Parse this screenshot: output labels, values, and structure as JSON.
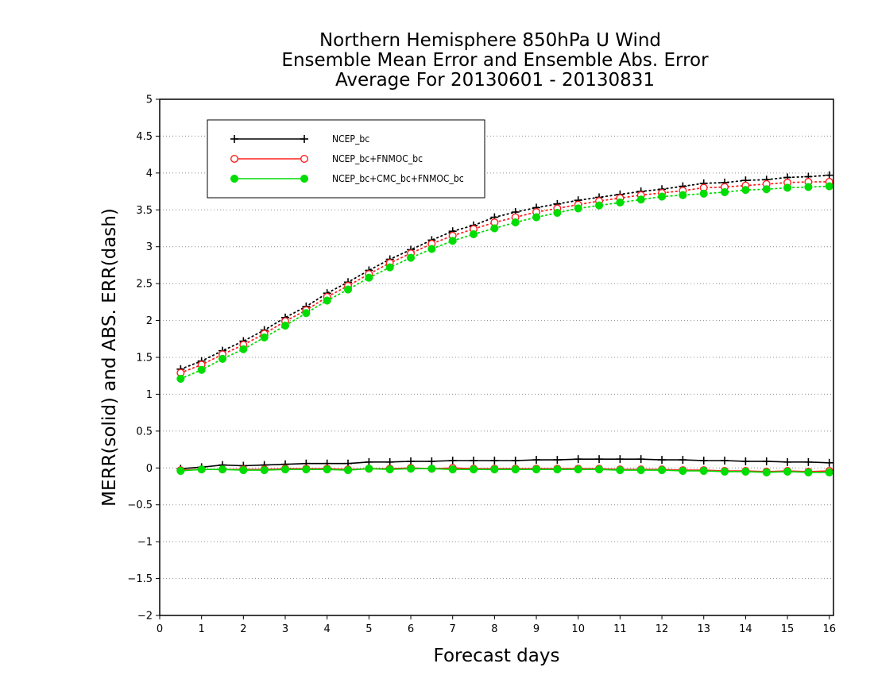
{
  "chart_data": {
    "type": "line",
    "title_lines": [
      "Northern Hemisphere 850hPa U Wind",
      "Ensemble Mean Error and Ensemble Abs. Error",
      "Average For 20130601 - 20130831"
    ],
    "xlabel": "Forecast days",
    "ylabel": "MERR(solid) and ABS. ERR(dash)",
    "xlim": [
      0,
      16.1
    ],
    "ylim": [
      -2,
      5
    ],
    "x_ticks": [
      "0",
      "1",
      "2",
      "3",
      "4",
      "5",
      "6",
      "7",
      "8",
      "9",
      "10",
      "11",
      "12",
      "13",
      "14",
      "15",
      "16"
    ],
    "y_ticks": [
      "5",
      "4.5",
      "4",
      "3.5",
      "3",
      "2.5",
      "2",
      "1.5",
      "1",
      "0.5",
      "0",
      "−0.5",
      "−1",
      "−1.5",
      "−2"
    ],
    "grid": true,
    "legend_position": "top-left",
    "x": [
      0.5,
      1,
      1.5,
      2,
      2.5,
      3,
      3.5,
      4,
      4.5,
      5,
      5.5,
      6,
      6.5,
      7,
      7.5,
      8,
      8.5,
      9,
      9.5,
      10,
      10.5,
      11,
      11.5,
      12,
      12.5,
      13,
      13.5,
      14,
      14.5,
      15,
      15.5,
      16
    ],
    "series": [
      {
        "name": "NCEP_bc",
        "color": "#000000",
        "marker": "plus",
        "mean_error": [
          -0.01,
          0.01,
          0.04,
          0.03,
          0.04,
          0.05,
          0.06,
          0.06,
          0.06,
          0.08,
          0.08,
          0.09,
          0.09,
          0.1,
          0.1,
          0.1,
          0.1,
          0.11,
          0.11,
          0.12,
          0.12,
          0.12,
          0.12,
          0.11,
          0.11,
          0.1,
          0.1,
          0.09,
          0.09,
          0.08,
          0.08,
          0.07
        ],
        "abs_error": [
          1.34,
          1.45,
          1.59,
          1.72,
          1.87,
          2.04,
          2.19,
          2.37,
          2.52,
          2.68,
          2.83,
          2.96,
          3.09,
          3.21,
          3.29,
          3.4,
          3.47,
          3.53,
          3.58,
          3.63,
          3.67,
          3.71,
          3.75,
          3.78,
          3.82,
          3.86,
          3.87,
          3.9,
          3.91,
          3.94,
          3.95,
          3.97
        ]
      },
      {
        "name": "NCEP_bc+FNMOC_bc",
        "color": "#ff2020",
        "marker": "open-circle",
        "mean_error": [
          -0.03,
          -0.02,
          -0.02,
          -0.02,
          -0.02,
          -0.01,
          -0.01,
          -0.01,
          -0.02,
          -0.01,
          -0.01,
          0.0,
          -0.01,
          0.0,
          -0.01,
          -0.01,
          -0.01,
          -0.01,
          -0.01,
          -0.01,
          -0.01,
          -0.02,
          -0.02,
          -0.02,
          -0.03,
          -0.03,
          -0.04,
          -0.04,
          -0.05,
          -0.04,
          -0.05,
          -0.04
        ],
        "abs_error": [
          1.29,
          1.4,
          1.54,
          1.67,
          1.82,
          1.99,
          2.14,
          2.32,
          2.47,
          2.63,
          2.78,
          2.91,
          3.04,
          3.15,
          3.24,
          3.33,
          3.4,
          3.47,
          3.52,
          3.57,
          3.62,
          3.66,
          3.7,
          3.73,
          3.76,
          3.8,
          3.81,
          3.83,
          3.85,
          3.87,
          3.88,
          3.88
        ]
      },
      {
        "name": "NCEP_bc+CMC_bc+FNMOC_bc",
        "color": "#00dd00",
        "marker": "filled-circle",
        "mean_error": [
          -0.04,
          -0.02,
          -0.02,
          -0.03,
          -0.03,
          -0.02,
          -0.02,
          -0.02,
          -0.03,
          -0.01,
          -0.02,
          -0.01,
          -0.01,
          -0.02,
          -0.02,
          -0.02,
          -0.02,
          -0.02,
          -0.02,
          -0.02,
          -0.02,
          -0.03,
          -0.03,
          -0.03,
          -0.04,
          -0.04,
          -0.05,
          -0.05,
          -0.06,
          -0.05,
          -0.06,
          -0.06
        ],
        "abs_error": [
          1.21,
          1.33,
          1.48,
          1.61,
          1.77,
          1.93,
          2.1,
          2.27,
          2.42,
          2.58,
          2.72,
          2.85,
          2.97,
          3.08,
          3.17,
          3.25,
          3.33,
          3.4,
          3.46,
          3.52,
          3.56,
          3.6,
          3.64,
          3.68,
          3.7,
          3.72,
          3.74,
          3.77,
          3.78,
          3.8,
          3.81,
          3.82
        ]
      }
    ]
  }
}
